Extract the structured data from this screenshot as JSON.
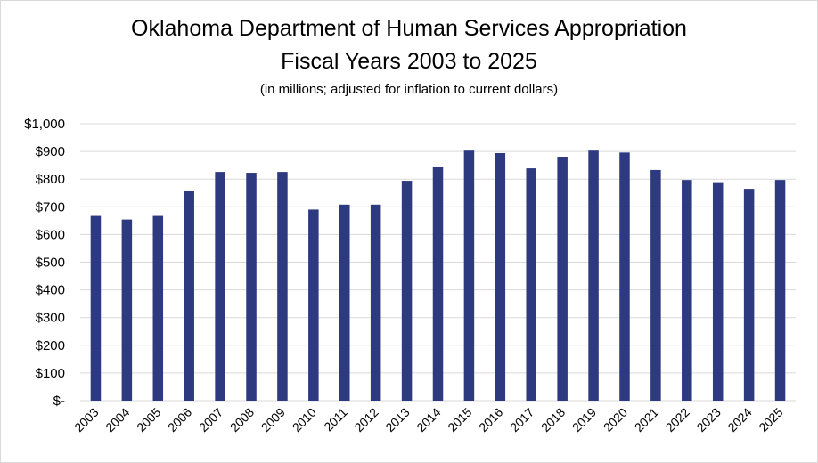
{
  "chart_data": {
    "type": "bar",
    "title": "Oklahoma Department of Human Services Appropriation",
    "subtitle": "Fiscal Years 2003 to 2025",
    "note": "(in millions; adjusted for inflation to current dollars)",
    "xlabel": "",
    "ylabel": "",
    "ylim": [
      0,
      1000
    ],
    "yticks": [
      0,
      100,
      200,
      300,
      400,
      500,
      600,
      700,
      800,
      900,
      1000
    ],
    "ytick_labels": [
      "$-",
      "$100",
      "$200",
      "$300",
      "$400",
      "$500",
      "$600",
      "$700",
      "$800",
      "$900",
      "$1,000"
    ],
    "grid": true,
    "bar_color": "#2e3a80",
    "categories": [
      "2003",
      "2004",
      "2005",
      "2006",
      "2007",
      "2008",
      "2009",
      "2010",
      "2011",
      "2012",
      "2013",
      "2014",
      "2015",
      "2016",
      "2017",
      "2018",
      "2019",
      "2020",
      "2021",
      "2022",
      "2023",
      "2024",
      "2025"
    ],
    "values": [
      667,
      654,
      667,
      759,
      826,
      823,
      826,
      690,
      708,
      708,
      794,
      843,
      903,
      894,
      839,
      881,
      903,
      896,
      833,
      797,
      789,
      765,
      797
    ]
  }
}
